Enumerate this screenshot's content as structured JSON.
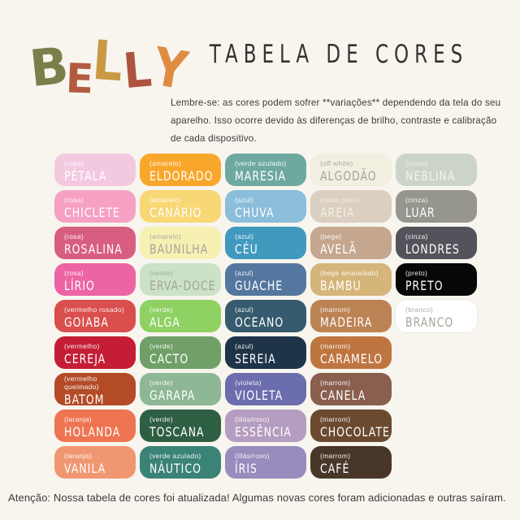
{
  "page": {
    "background": "#f7f5ee",
    "title": "TABELA DE CORES",
    "intro": "Lembre-se: as cores podem sofrer **variações** dependendo da tela do seu aparelho. Isso ocorre devido às diferenças de brilho, contraste e calibração de cada dispositivo.",
    "footer": "Atenção: Nossa tabela de cores foi atualizada! Algumas novas cores foram adicionadas e outras saíram."
  },
  "logo": {
    "word": "BELLY",
    "letters": [
      {
        "char": "B",
        "color": "#7b7e4a"
      },
      {
        "char": "E",
        "color": "#b25b41"
      },
      {
        "char": "L",
        "color": "#c99a43"
      },
      {
        "char": "L",
        "color": "#ae5340"
      },
      {
        "char": "Y",
        "color": "#df8b41"
      }
    ]
  },
  "palette": {
    "label_gray": "#a5a49b",
    "rows": [
      [
        {
          "category": "(rosa)",
          "name": "PÉTALA",
          "bg": "#f3c9e0",
          "fg": "#ffffff"
        },
        {
          "category": "(amarelo)",
          "name": "ELDORADO",
          "bg": "#f9a72b",
          "fg": "#ffffff"
        },
        {
          "category": "(verde azulado)",
          "name": "MARESIA",
          "bg": "#6ea9a0",
          "fg": "#ffffff"
        },
        {
          "category": "(off white)",
          "name": "ALGODÃO",
          "bg": "#f3efe0",
          "fg": "#a5a49b"
        },
        {
          "category": "(cinza)",
          "name": "NEBLINA",
          "bg": "#ccd4ca",
          "fg": "#f4f2ea"
        }
      ],
      [
        {
          "category": "(rosa)",
          "name": "CHICLETE",
          "bg": "#f6a1c4",
          "fg": "#ffffff"
        },
        {
          "category": "(amarelo)",
          "name": "CANÁRIO",
          "bg": "#f8d775",
          "fg": "#ffffff"
        },
        {
          "category": "(azul)",
          "name": "CHUVA",
          "bg": "#8abeda",
          "fg": "#ffffff"
        },
        {
          "category": "(nude claro)",
          "name": "AREIA",
          "bg": "#dbcfc2",
          "fg": "#f3efe4"
        },
        {
          "category": "(cinza)",
          "name": "LUAR",
          "bg": "#96968e",
          "fg": "#ffffff"
        }
      ],
      [
        {
          "category": "(rosa)",
          "name": "ROSALINA",
          "bg": "#d85e81",
          "fg": "#ffffff"
        },
        {
          "category": "(amarelo)",
          "name": "BAUNILHA",
          "bg": "#f6f0b3",
          "fg": "#a5a49b"
        },
        {
          "category": "(azul)",
          "name": "CÉU",
          "bg": "#4199be",
          "fg": "#ffffff"
        },
        {
          "category": "(bege)",
          "name": "AVELÃ",
          "bg": "#c5a68e",
          "fg": "#ffffff"
        },
        {
          "category": "(cinza)",
          "name": "LONDRES",
          "bg": "#53545b",
          "fg": "#ffffff"
        }
      ],
      [
        {
          "category": "(rosa)",
          "name": "LÍRIO",
          "bg": "#ec64a4",
          "fg": "#ffffff"
        },
        {
          "category": "(verde)",
          "name": "ERVA-DOCE",
          "bg": "#cbe2c7",
          "fg": "#a5a49b"
        },
        {
          "category": "(azul)",
          "name": "GUACHE",
          "bg": "#54779f",
          "fg": "#ffffff"
        },
        {
          "category": "(bege amarelado)",
          "name": "BAMBU",
          "bg": "#d5b57a",
          "fg": "#ffffff"
        },
        {
          "category": "(preto)",
          "name": "PRETO",
          "bg": "#070707",
          "fg": "#ffffff"
        }
      ],
      [
        {
          "category": "(vermelho rosado)",
          "name": "GOIABA",
          "bg": "#d94f4d",
          "fg": "#ffffff"
        },
        {
          "category": "(verde)",
          "name": "ALGA",
          "bg": "#8fd163",
          "fg": "#ffffff"
        },
        {
          "category": "(azul)",
          "name": "OCEANO",
          "bg": "#365a6e",
          "fg": "#ffffff"
        },
        {
          "category": "(marrom)",
          "name": "MADEIRA",
          "bg": "#bc8355",
          "fg": "#ffffff"
        },
        {
          "category": "(branco)",
          "name": "BRANCO",
          "bg": "#ffffff",
          "fg": "#a5a49b",
          "border": "#edeadd"
        }
      ],
      [
        {
          "category": "(vermelho)",
          "name": "CEREJA",
          "bg": "#c41d35",
          "fg": "#ffffff"
        },
        {
          "category": "(verde)",
          "name": "CACTO",
          "bg": "#70a068",
          "fg": "#ffffff"
        },
        {
          "category": "(azul)",
          "name": "SEREIA",
          "bg": "#1e3449",
          "fg": "#ffffff"
        },
        {
          "category": "(marrom)",
          "name": "CARAMELO",
          "bg": "#bf7540",
          "fg": "#ffffff"
        }
      ],
      [
        {
          "category": "(vermelho queimado)",
          "name": "BATOM",
          "bg": "#b34b27",
          "fg": "#ffffff"
        },
        {
          "category": "(verde)",
          "name": "GARAPA",
          "bg": "#8db795",
          "fg": "#ffffff"
        },
        {
          "category": "(violeta)",
          "name": "VIOLETA",
          "bg": "#6b6dac",
          "fg": "#ffffff"
        },
        {
          "category": "(marrom)",
          "name": "CANELA",
          "bg": "#8a5f4e",
          "fg": "#ffffff"
        }
      ],
      [
        {
          "category": "(laranja)",
          "name": "HOLANDA",
          "bg": "#ee7452",
          "fg": "#ffffff"
        },
        {
          "category": "(verde)",
          "name": "TOSCANA",
          "bg": "#2f5f42",
          "fg": "#ffffff"
        },
        {
          "category": "(lilás/roxo)",
          "name": "ESSÊNCIA",
          "bg": "#b59cc1",
          "fg": "#ffffff"
        },
        {
          "category": "(marrom)",
          "name": "CHOCOLATE",
          "bg": "#6b4a30",
          "fg": "#ffffff"
        }
      ],
      [
        {
          "category": "(laranja)",
          "name": "VANILA",
          "bg": "#f09772",
          "fg": "#ffffff"
        },
        {
          "category": "(verde azulado)",
          "name": "NÁUTICO",
          "bg": "#3b8376",
          "fg": "#ffffff"
        },
        {
          "category": "(lilás/roxo)",
          "name": "ÍRIS",
          "bg": "#988cbd",
          "fg": "#ffffff"
        },
        {
          "category": "(marrom)",
          "name": "CAFÉ",
          "bg": "#483729",
          "fg": "#ffffff"
        }
      ]
    ]
  }
}
